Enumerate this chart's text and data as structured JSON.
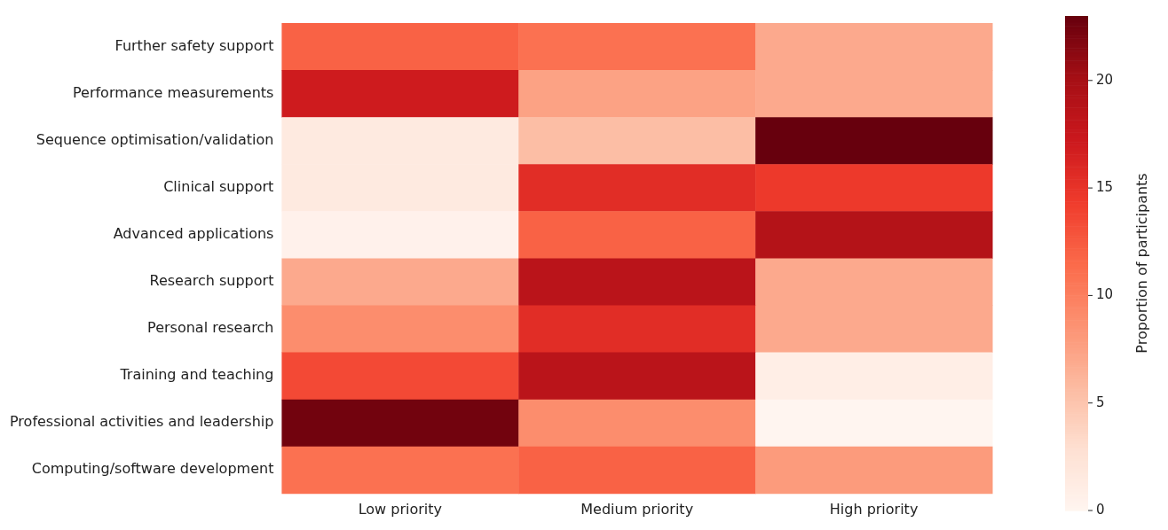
{
  "chart_data": {
    "type": "heatmap",
    "categories": [
      "Low priority",
      "Medium priority",
      "High priority"
    ],
    "y_categories": [
      "Further safety support",
      "Performance measurements",
      "Sequence optimisation/validation",
      "Clinical support",
      "Advanced applications",
      "Research support",
      "Personal research",
      "Training and teaching",
      "Professional activities and leadership",
      "Computing/software development"
    ],
    "cells": [
      [
        12,
        11,
        7
      ],
      [
        17,
        7.5,
        7
      ],
      [
        1.5,
        5.5,
        23
      ],
      [
        1.5,
        15.5,
        14.5
      ],
      [
        0.5,
        12,
        19
      ],
      [
        7,
        18.5,
        7
      ],
      [
        9,
        15.5,
        7
      ],
      [
        13.5,
        18.5,
        1
      ],
      [
        22.5,
        9,
        0
      ],
      [
        11,
        12,
        8
      ]
    ],
    "clim": [
      0,
      23
    ],
    "cticks": [
      0,
      5,
      10,
      15,
      20
    ],
    "clabel": "Proportion of participants"
  }
}
